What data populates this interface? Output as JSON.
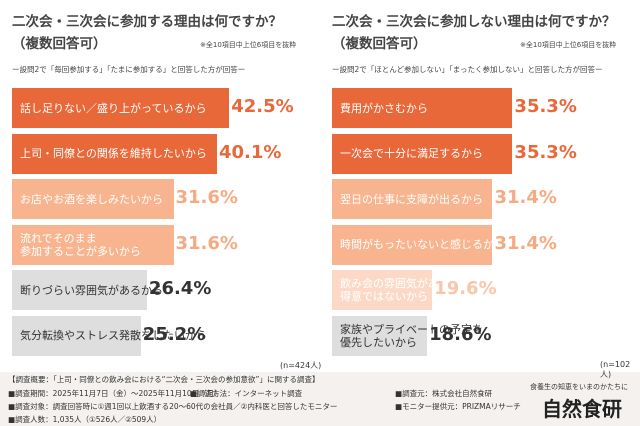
{
  "chart_data": [
    {
      "type": "bar",
      "title": "二次会・三次会に参加する理由は何ですか？",
      "subtitle": "（複数回答可）",
      "note": "※全10項目中上位6項目を抜粋",
      "question": "ー設問2で「毎回参加する」「たまに参加する」と回答した方が回答ー",
      "categories": [
        "話し足りない／盛り上がっているから",
        "上司・同僚との関係を維持したいから",
        "お店やお酒を楽しみたいから",
        "流れでそのまま\n参加することが多いから",
        "断りづらい雰囲気があるから",
        "気分転換やストレス発散をしたいから"
      ],
      "values": [
        42.5,
        40.1,
        31.6,
        31.6,
        26.4,
        25.2
      ],
      "value_labels": [
        "42.5%",
        "40.1%",
        "31.6%",
        "31.6%",
        "26.4%",
        "25.2%"
      ],
      "colors": [
        "#e8683a",
        "#e8683a",
        "#f7b48f",
        "#f7b48f",
        "#dedede",
        "#dedede"
      ],
      "value_colors": [
        "#e8683a",
        "#e8683a",
        "#f5ab82",
        "#f5ab82",
        "#333333",
        "#333333"
      ],
      "xlim": [
        0,
        45
      ],
      "sample": "(n=424人)"
    },
    {
      "type": "bar",
      "title": "二次会・三次会に参加しない理由は何ですか？",
      "subtitle": "（複数回答可）",
      "note": "※全10項目中上位6項目を抜粋",
      "question": "ー設問2で「ほとんど参加しない」「まったく参加しない」と回答した方が回答ー",
      "categories": [
        "費用がかさむから",
        "一次会で十分に満足するから",
        "翌日の仕事に支障が出るから",
        "時間がもったいないと感じるから",
        "飲み会の雰囲気があまり\n得意ではないから",
        "家族やプライベートの予定を\n優先したいから"
      ],
      "values": [
        35.3,
        35.3,
        31.4,
        31.4,
        19.6,
        18.6
      ],
      "value_labels": [
        "35.3%",
        "35.3%",
        "31.4%",
        "31.4%",
        "19.6%",
        "18.6%"
      ],
      "colors": [
        "#e8683a",
        "#e8683a",
        "#f7b48f",
        "#f7b48f",
        "#fbd9c6",
        "#dedede"
      ],
      "value_colors": [
        "#e8683a",
        "#e8683a",
        "#f5ab82",
        "#f5ab82",
        "#f9c6a8",
        "#333333"
      ],
      "xlim": [
        0,
        45
      ],
      "sample": "(n=102人)"
    }
  ],
  "footer": {
    "lines": [
      "【調査概要：「上司・同僚との飲み会における“二次会・三次会の参加意欲”」に関する調査】",
      "■調査期間：2025年11月7日（金）～2025年11月10日（月）",
      "■調査方法：インターネット調査",
      "■調査対象：調査回答時に①週1回以上飲酒する20～60代の会社員／②内科医と回答したモニター",
      "■調査元：株式会社自然食研",
      "■モニター提供元：PRIZMAリサーチ",
      "■調査人数：1,035人（①526人／②509人）"
    ],
    "tagline": "食養生の知恵をいまのかたちに",
    "brand": "自然食研"
  }
}
